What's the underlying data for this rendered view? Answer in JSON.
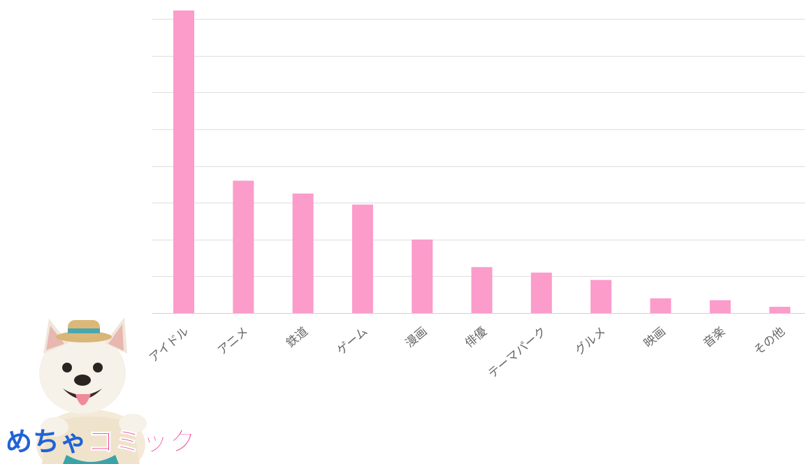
{
  "chart_data": {
    "type": "bar",
    "categories": [
      "アイドル",
      "アニメ",
      "鉄道",
      "ゲーム",
      "漫画",
      "俳優",
      "テーマパーク",
      "グルメ",
      "映画",
      "音楽",
      "その他"
    ],
    "values": [
      83,
      36,
      32.5,
      29.5,
      20,
      12.5,
      11,
      9,
      4,
      3.5,
      1.7
    ],
    "ylim": [
      0,
      80
    ],
    "grid": true,
    "colors": {
      "bar": "#fb9ccb",
      "grid": "#dedede"
    }
  },
  "logo": {
    "part1": "めちゃ",
    "part2": "コミック",
    "colors": {
      "part1": "#1f63d6",
      "part2": "#ee3c95"
    }
  }
}
